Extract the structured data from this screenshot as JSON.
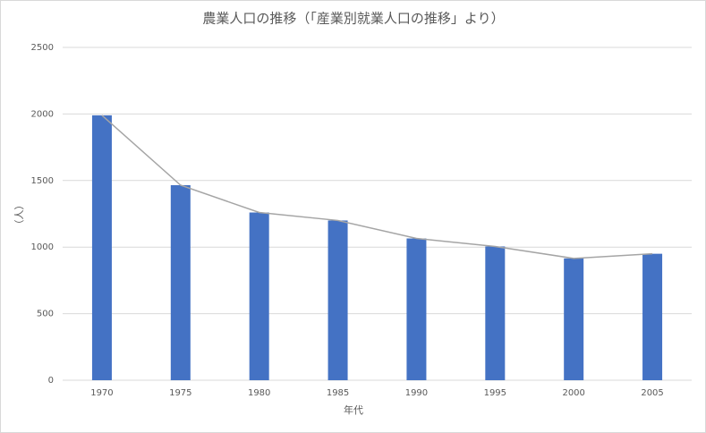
{
  "chart_data": {
    "type": "bar",
    "title": "農業人口の推移（「産業別就業人口の推移」より）",
    "x_label": "年代",
    "y_label": "（人）",
    "categories": [
      "1970",
      "1975",
      "1980",
      "1985",
      "1990",
      "1995",
      "2000",
      "2005"
    ],
    "series": [
      {
        "type": "bar",
        "color": "#4472c4",
        "values": [
          1990,
          1465,
          1260,
          1200,
          1065,
          1005,
          915,
          950
        ]
      },
      {
        "type": "line",
        "color": "#a5a5a5",
        "values": [
          1990,
          1465,
          1260,
          1200,
          1065,
          1005,
          915,
          950
        ]
      }
    ],
    "ylim": [
      0,
      2500
    ],
    "yticks": [
      0,
      500,
      1000,
      1500,
      2000,
      2500
    ],
    "grid": true
  }
}
